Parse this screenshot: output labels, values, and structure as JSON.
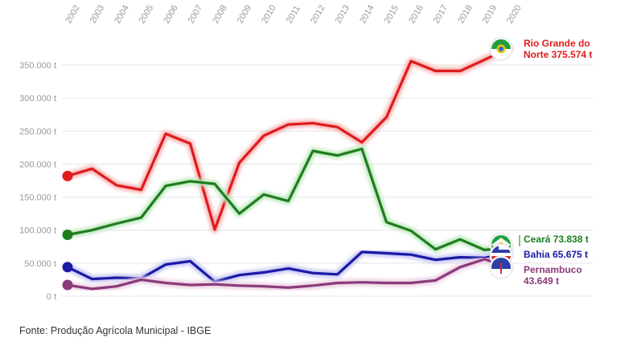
{
  "chart_data": {
    "type": "line",
    "title": "",
    "xlabel": "",
    "ylabel": "",
    "ylim": [
      0,
      380000
    ],
    "y_ticks": [
      0,
      50000,
      100000,
      150000,
      200000,
      250000,
      300000,
      350000
    ],
    "y_tick_labels": [
      "0 t",
      "50.000 t",
      "100.000 t",
      "150.000 t",
      "200.000 t",
      "250.000 t",
      "300.000 t",
      "350.000 t"
    ],
    "categories": [
      "2002",
      "2003",
      "2004",
      "2005",
      "2006",
      "2007",
      "2008",
      "2009",
      "2010",
      "2011",
      "2012",
      "2013",
      "2014",
      "2015",
      "2016",
      "2017",
      "2018",
      "2019",
      "2020"
    ],
    "series": [
      {
        "name": "Rio Grande do Norte",
        "color": "#e01b1b",
        "glow": "#f7b4b4",
        "label_lines": [
          "Rio Grande do",
          "Norte 375.574 t"
        ],
        "values": [
          182000,
          193000,
          168000,
          161000,
          246000,
          231000,
          101000,
          202000,
          243000,
          260000,
          262000,
          256000,
          233000,
          271000,
          356000,
          341000,
          341000,
          358000,
          375574
        ]
      },
      {
        "name": "Ceará",
        "color": "#1e7d1e",
        "glow": "#bfe8bf",
        "label_lines": [
          "Ceará 73.838 t"
        ],
        "values": [
          93000,
          100000,
          110000,
          119000,
          167000,
          174000,
          170000,
          125000,
          154000,
          144000,
          220000,
          213000,
          223000,
          112000,
          99000,
          71000,
          86000,
          70000,
          73838
        ]
      },
      {
        "name": "Bahia",
        "color": "#1a1aa6",
        "glow": "#c4c4f4",
        "label_lines": [
          "Bahia 65.675 t"
        ],
        "values": [
          44000,
          26000,
          28000,
          27000,
          48000,
          53000,
          22000,
          32000,
          36000,
          42000,
          35000,
          33000,
          67000,
          65000,
          63000,
          55000,
          59000,
          58000,
          65675
        ]
      },
      {
        "name": "Pernambuco",
        "color": "#8b3a7a",
        "glow": "#ead0e3",
        "label_lines": [
          "Pernambuco",
          "43.649 t"
        ],
        "values": [
          17000,
          11000,
          15000,
          25000,
          20000,
          17000,
          18000,
          16000,
          15000,
          13000,
          16000,
          20000,
          21000,
          20000,
          20000,
          24000,
          44000,
          56000,
          43649
        ]
      }
    ]
  },
  "source": "Fonte: Produção Agrícola Municipal - IBGE"
}
